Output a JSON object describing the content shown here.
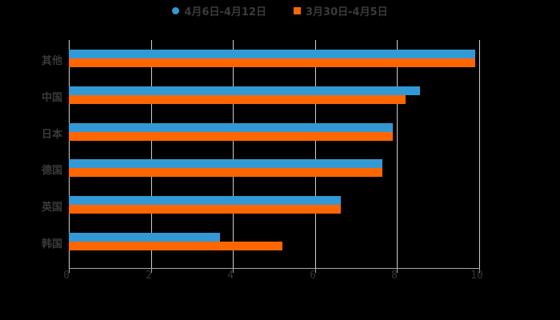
{
  "chart_data": {
    "type": "bar",
    "orientation": "horizontal",
    "title": "",
    "xlabel": "",
    "ylabel": "",
    "xlim": [
      0,
      10
    ],
    "x_ticks": [
      "0",
      "2",
      "4",
      "6",
      "8",
      "10"
    ],
    "grid": true,
    "legend_position": "top",
    "categories": [
      "其他",
      "中国",
      "日本",
      "德国",
      "英国",
      "韩国"
    ],
    "series": [
      {
        "name": "4月6日-4月12日",
        "color": "#3399d4",
        "marker": "circle",
        "values": [
          9.9,
          8.55,
          7.9,
          7.65,
          6.63,
          3.68
        ]
      },
      {
        "name": "3月30日-4月5日",
        "color": "#ff6600",
        "marker": "square",
        "values": [
          9.9,
          8.2,
          7.9,
          7.65,
          6.63,
          5.2
        ]
      }
    ]
  }
}
